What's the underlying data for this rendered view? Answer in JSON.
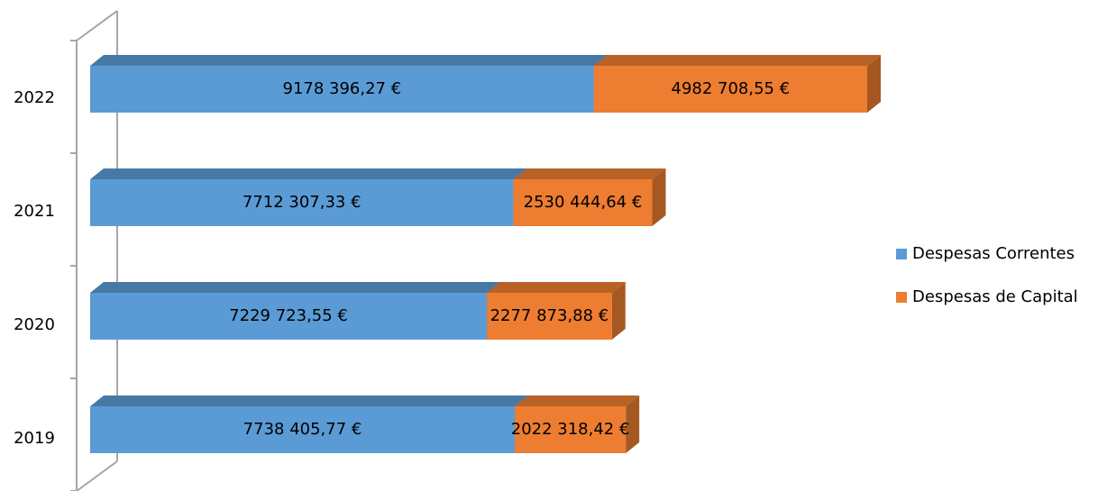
{
  "chart_data": {
    "type": "bar3d_stacked_horizontal",
    "categories": [
      "2022",
      "2021",
      "2020",
      "2019"
    ],
    "series": [
      {
        "name": "Despesas Correntes",
        "color": "#5b9bd5",
        "values": [
          9178396.27,
          7712307.33,
          7229723.55,
          7738405.77
        ],
        "value_labels": [
          "9178 396,27 €",
          "7712 307,33 €",
          "7229 723,55 €",
          "7738 405,77 €"
        ]
      },
      {
        "name": "Despesas de Capital",
        "color": "#ed7d31",
        "values": [
          4982708.55,
          2530444.64,
          2277873.88,
          2022318.42
        ],
        "value_labels": [
          "4982 708,55 €",
          "2530 444,64 €",
          "2277 873,88 €",
          "2022 318,42 €"
        ]
      }
    ],
    "legend": "right"
  }
}
